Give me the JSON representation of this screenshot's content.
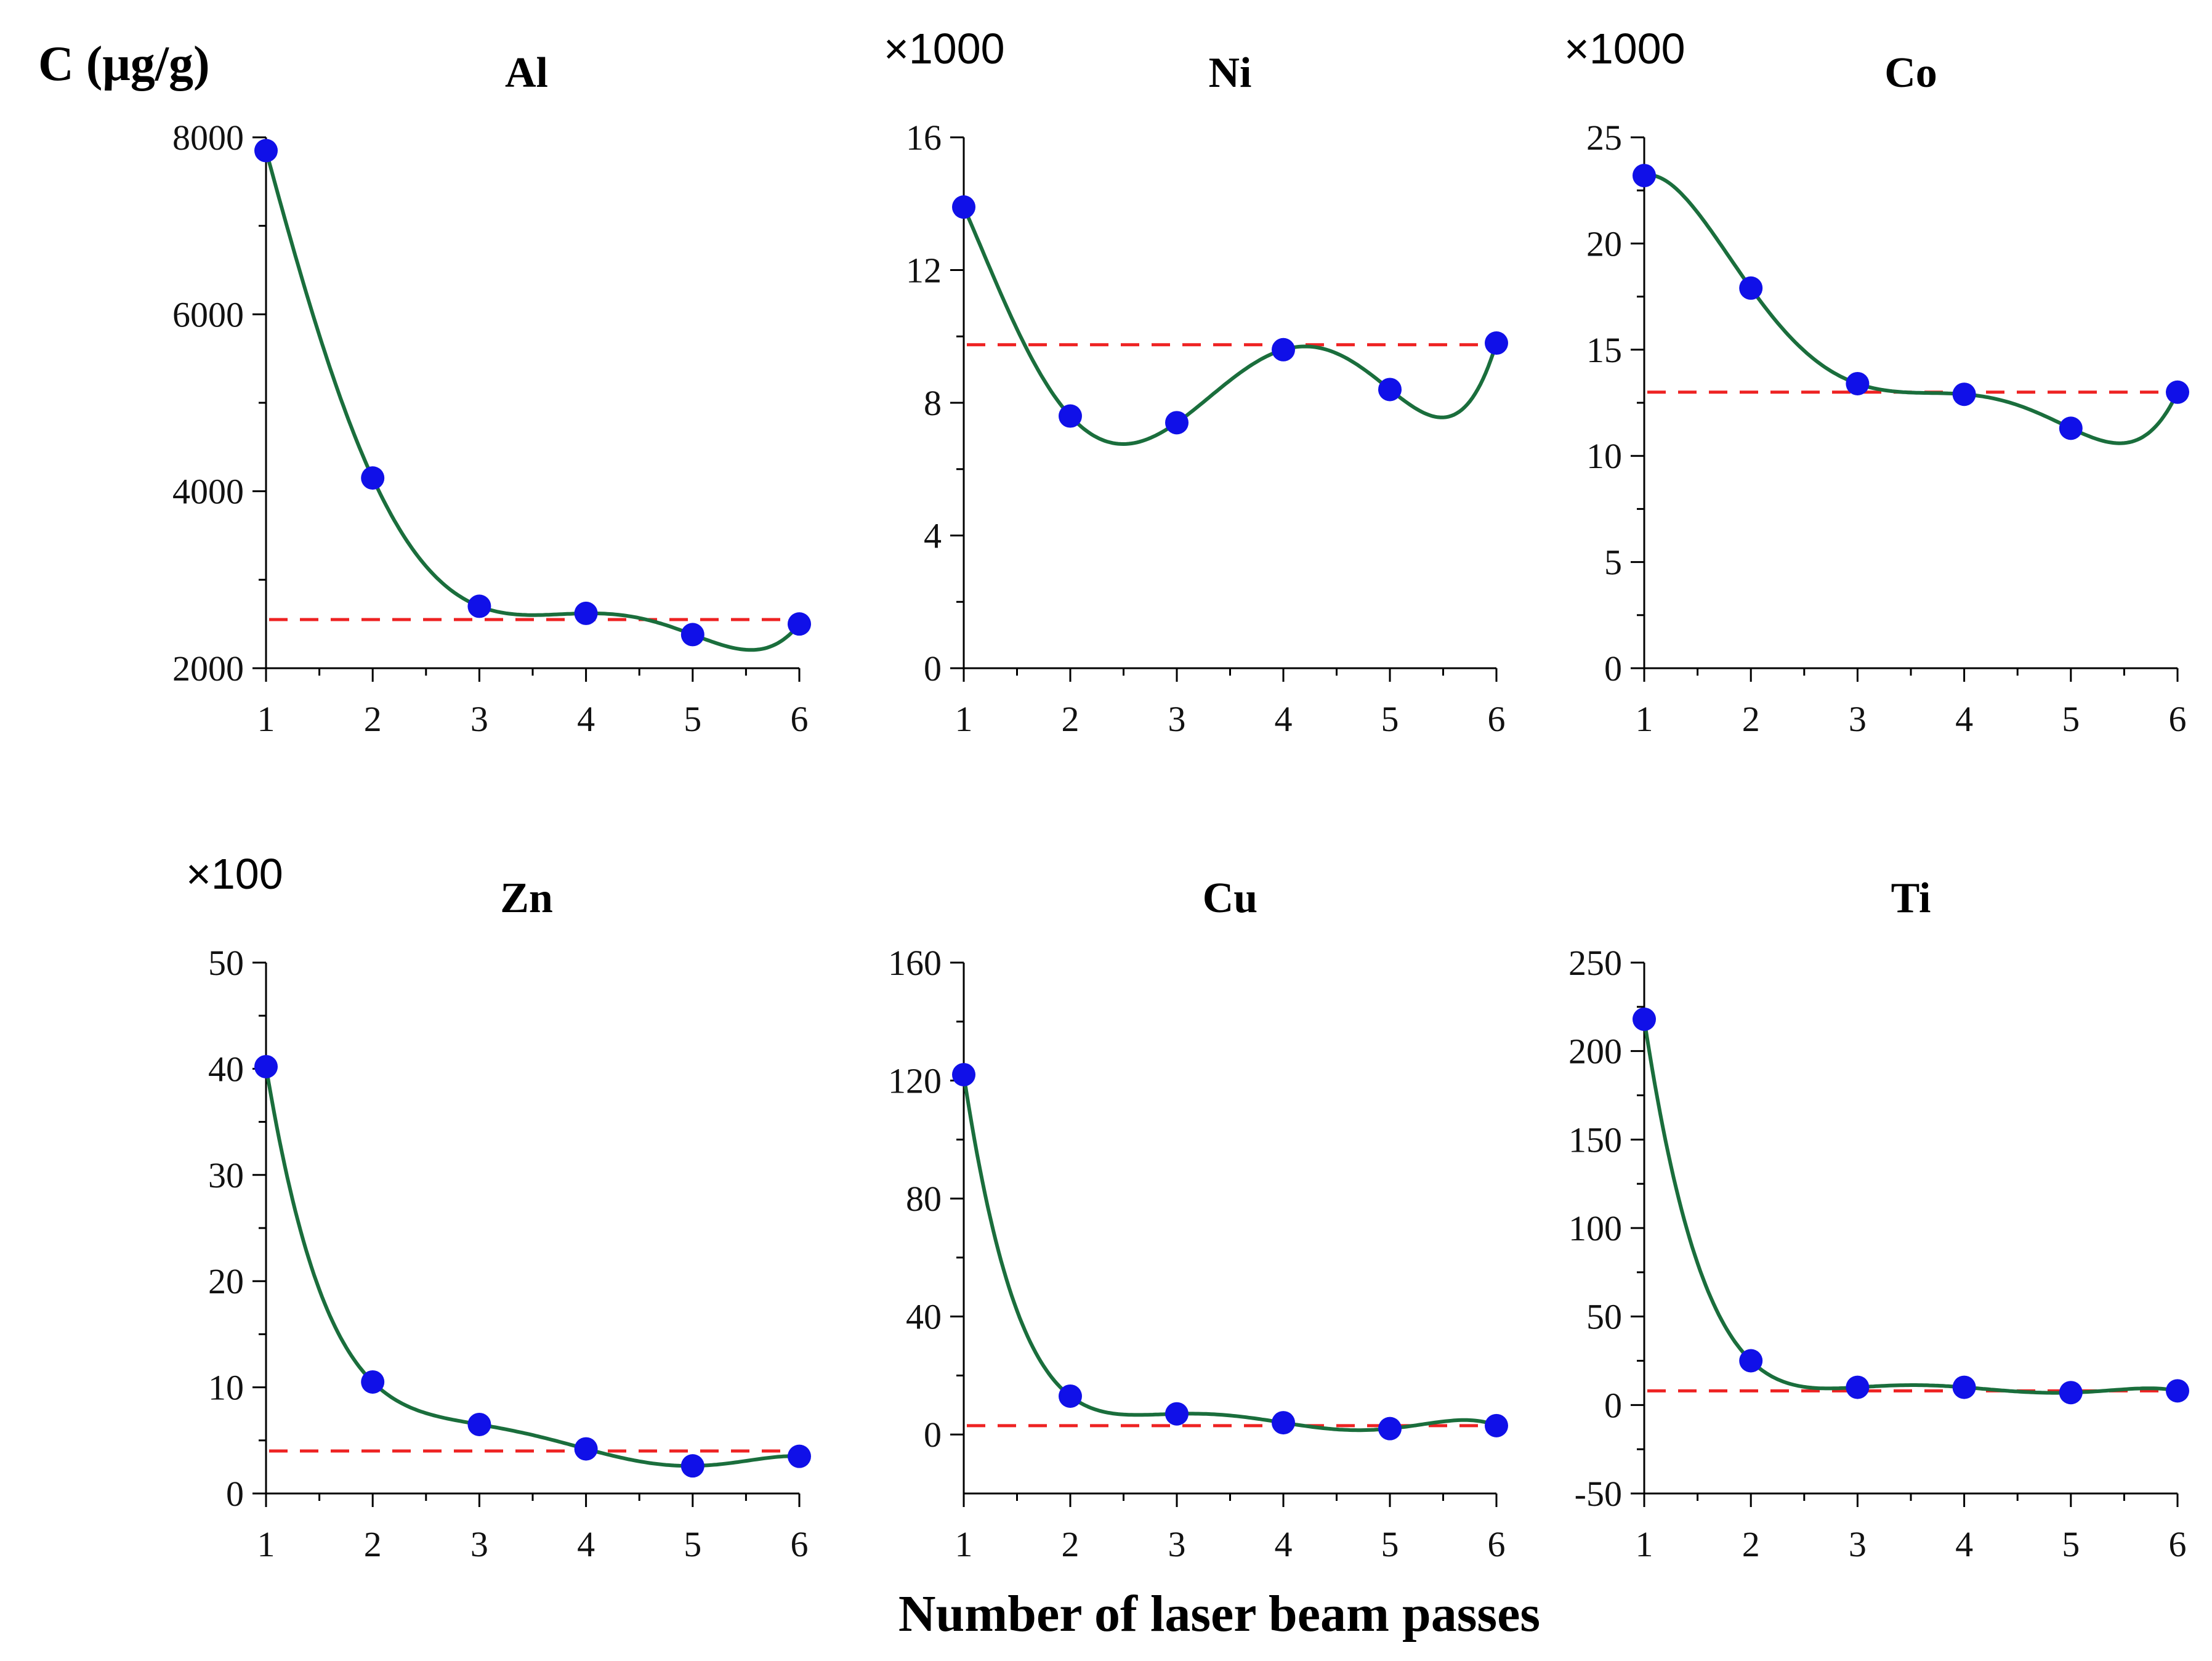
{
  "figure": {
    "ylabel": "C (μg/g)",
    "xlabel": "Number of laser beam passes"
  },
  "colors": {
    "points": "#1010e8",
    "fit": "#1a6e3c",
    "reference": "#ee2222",
    "axis": "#000000"
  },
  "chart_data": [
    {
      "type": "scatter",
      "title": "Al",
      "multiplier": "",
      "x": [
        1,
        2,
        3,
        4,
        5,
        6
      ],
      "y": [
        7850,
        4150,
        2700,
        2620,
        2380,
        2500
      ],
      "reference_line": 2550,
      "ylim": [
        2000,
        8000
      ],
      "yticks": [
        2000,
        4000,
        6000,
        8000
      ],
      "xticks": [
        1,
        2,
        3,
        4,
        5,
        6
      ]
    },
    {
      "type": "scatter",
      "title": "Ni",
      "multiplier": "×1000",
      "x": [
        1,
        2,
        3,
        4,
        5,
        6
      ],
      "y": [
        13.9,
        7.6,
        7.4,
        9.6,
        8.4,
        9.8
      ],
      "reference_line": 9.75,
      "ylim": [
        0,
        16
      ],
      "yticks": [
        0,
        4,
        8,
        12,
        16
      ],
      "xticks": [
        1,
        2,
        3,
        4,
        5,
        6
      ]
    },
    {
      "type": "scatter",
      "title": "Co",
      "multiplier": "×1000",
      "x": [
        1,
        2,
        3,
        4,
        5,
        6
      ],
      "y": [
        23.2,
        17.9,
        13.4,
        12.9,
        11.3,
        13.0
      ],
      "reference_line": 13.0,
      "ylim": [
        0,
        25
      ],
      "yticks": [
        0,
        5,
        10,
        15,
        20,
        25
      ],
      "xticks": [
        1,
        2,
        3,
        4,
        5,
        6
      ]
    },
    {
      "type": "scatter",
      "title": "Zn",
      "multiplier": "×100",
      "x": [
        1,
        2,
        3,
        4,
        5,
        6
      ],
      "y": [
        40.2,
        10.5,
        6.5,
        4.2,
        2.6,
        3.5
      ],
      "reference_line": 4.0,
      "ylim": [
        0,
        50
      ],
      "yticks": [
        0,
        10,
        20,
        30,
        40,
        50
      ],
      "xticks": [
        1,
        2,
        3,
        4,
        5,
        6
      ]
    },
    {
      "type": "scatter",
      "title": "Cu",
      "multiplier": "",
      "x": [
        1,
        2,
        3,
        4,
        5,
        6
      ],
      "y": [
        122,
        13,
        7,
        4,
        2,
        3
      ],
      "reference_line": 3,
      "ylim": [
        -20,
        160
      ],
      "yticks": [
        0,
        40,
        80,
        120,
        160
      ],
      "xticks": [
        1,
        2,
        3,
        4,
        5,
        6
      ]
    },
    {
      "type": "scatter",
      "title": "Ti",
      "multiplier": "",
      "x": [
        1,
        2,
        3,
        4,
        5,
        6
      ],
      "y": [
        218,
        25,
        10,
        10,
        7,
        8
      ],
      "reference_line": 8,
      "ylim": [
        -50,
        250
      ],
      "yticks": [
        -50,
        0,
        50,
        100,
        150,
        200,
        250
      ],
      "xticks": [
        1,
        2,
        3,
        4,
        5,
        6
      ]
    }
  ]
}
